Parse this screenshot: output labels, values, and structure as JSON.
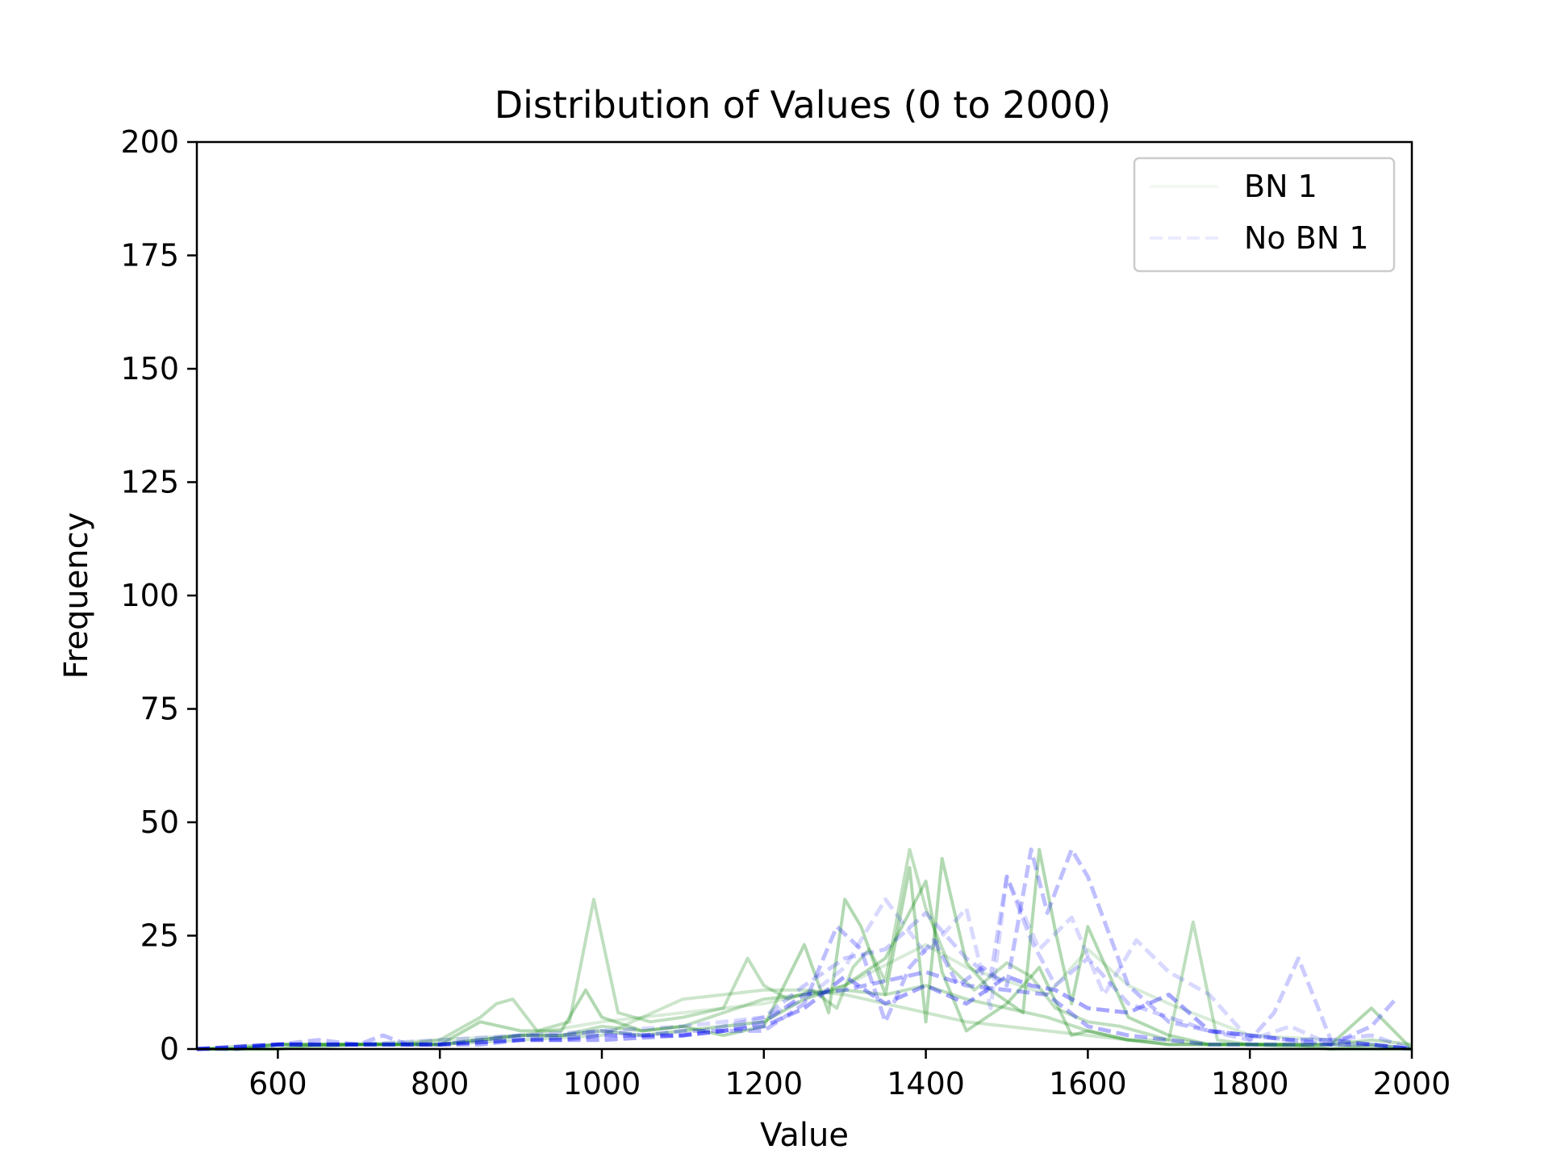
{
  "chart_data": {
    "type": "line",
    "title": "Distribution of Values (0 to 2000)",
    "xlabel": "Value",
    "ylabel": "Frequency",
    "xlim": [
      500,
      2000
    ],
    "ylim": [
      0,
      200
    ],
    "xticks": [
      600,
      800,
      1000,
      1200,
      1400,
      1600,
      1800,
      2000
    ],
    "yticks": [
      0,
      25,
      50,
      75,
      100,
      125,
      150,
      175,
      200
    ],
    "grid": false,
    "legend_position": "top-right",
    "legend": [
      {
        "label": "BN 1",
        "color": "#008000",
        "dash": "solid"
      },
      {
        "label": "No BN 1",
        "color": "#0000ff",
        "dash": "dashed"
      }
    ],
    "series": [
      {
        "name": "BN 1",
        "group": "bn",
        "color": "#008000",
        "opacity": 0.25,
        "x": [
          500,
          550,
          600,
          650,
          700,
          750,
          800,
          850,
          900,
          950,
          1000,
          1050,
          1100,
          1150,
          1200,
          1250,
          1300,
          1350,
          1400,
          1450,
          1500,
          1550,
          1600,
          1650,
          1700,
          1750,
          1800,
          1850,
          1900,
          1950,
          2000
        ],
        "y": [
          0,
          0,
          1,
          1,
          1,
          1,
          1,
          2,
          3,
          3,
          5,
          4,
          5,
          8,
          11,
          12,
          13,
          12,
          14,
          11,
          9,
          7,
          4,
          2,
          1,
          1,
          1,
          1,
          0,
          1,
          0
        ]
      },
      {
        "group": "bn",
        "color": "#008000",
        "opacity": 0.25,
        "x": [
          500,
          550,
          600,
          650,
          700,
          750,
          800,
          830,
          850,
          870,
          890,
          920,
          960,
          990,
          1020,
          1060,
          1100,
          1150,
          1180,
          1200,
          1230,
          1260,
          1290,
          1310,
          1330,
          1350,
          1380,
          1400,
          1430,
          1460,
          1500,
          1530,
          1560,
          1600,
          1640,
          1680,
          1700,
          1730,
          1760,
          1800,
          1850,
          1900,
          1950,
          2000
        ],
        "y": [
          0,
          0,
          0,
          1,
          1,
          1,
          2,
          5,
          7,
          10,
          11,
          4,
          6,
          33,
          8,
          6,
          7,
          9,
          20,
          14,
          11,
          13,
          9,
          18,
          22,
          15,
          44,
          31,
          18,
          13,
          19,
          16,
          9,
          6,
          5,
          3,
          2,
          28,
          2,
          1,
          1,
          1,
          2,
          1
        ]
      },
      {
        "group": "bn",
        "color": "#008000",
        "opacity": 0.3,
        "x": [
          500,
          550,
          600,
          650,
          700,
          750,
          800,
          850,
          900,
          950,
          980,
          1000,
          1050,
          1100,
          1150,
          1200,
          1250,
          1280,
          1300,
          1320,
          1350,
          1380,
          1400,
          1420,
          1450,
          1480,
          1520,
          1540,
          1560,
          1580,
          1600,
          1650,
          1700,
          1750,
          1800,
          1850,
          1900,
          1950,
          2000
        ],
        "y": [
          0,
          0,
          1,
          1,
          1,
          1,
          1,
          6,
          4,
          4,
          13,
          7,
          4,
          5,
          3,
          5,
          23,
          8,
          33,
          27,
          12,
          40,
          6,
          42,
          19,
          13,
          8,
          44,
          26,
          10,
          27,
          7,
          3,
          1,
          1,
          1,
          1,
          9,
          0
        ]
      },
      {
        "group": "bn",
        "color": "#008000",
        "opacity": 0.3,
        "x": [
          500,
          600,
          700,
          800,
          850,
          900,
          950,
          1000,
          1050,
          1100,
          1150,
          1200,
          1250,
          1300,
          1350,
          1400,
          1420,
          1450,
          1500,
          1540,
          1580,
          1600,
          1650,
          1700,
          1800,
          1900,
          2000
        ],
        "y": [
          0,
          0,
          1,
          1,
          2,
          3,
          3,
          4,
          3,
          4,
          5,
          6,
          11,
          14,
          20,
          37,
          17,
          4,
          10,
          18,
          3,
          4,
          2,
          1,
          1,
          0,
          0
        ]
      },
      {
        "group": "bn",
        "color": "#008000",
        "opacity": 0.2,
        "x": [
          500,
          600,
          700,
          800,
          900,
          1000,
          1100,
          1150,
          1200,
          1250,
          1300,
          1350,
          1400,
          1450,
          1500,
          1550,
          1600,
          1650,
          1700,
          1750,
          1800,
          1900,
          2000
        ],
        "y": [
          0,
          1,
          1,
          1,
          2,
          3,
          11,
          12,
          13,
          13,
          12,
          10,
          8,
          6,
          5,
          4,
          3,
          2,
          2,
          1,
          1,
          1,
          0
        ]
      },
      {
        "group": "bn",
        "color": "#008000",
        "opacity": 0.15,
        "x": [
          500,
          600,
          700,
          800,
          900,
          1000,
          1100,
          1200,
          1300,
          1400,
          1450,
          1500,
          1550,
          1600,
          1650,
          1700,
          1800,
          1900,
          2000
        ],
        "y": [
          0,
          1,
          1,
          2,
          3,
          6,
          8,
          10,
          14,
          23,
          18,
          15,
          12,
          22,
          14,
          10,
          3,
          2,
          0
        ]
      },
      {
        "name": "No BN 1",
        "group": "nobn",
        "color": "#0000ff",
        "opacity": 0.3,
        "dash": true,
        "x": [
          500,
          550,
          600,
          650,
          700,
          750,
          800,
          850,
          900,
          950,
          1000,
          1050,
          1100,
          1150,
          1200,
          1250,
          1300,
          1350,
          1400,
          1450,
          1500,
          1550,
          1600,
          1650,
          1700,
          1750,
          1800,
          1850,
          1900,
          1950,
          2000
        ],
        "y": [
          0,
          0,
          1,
          1,
          1,
          1,
          1,
          1,
          2,
          2,
          3,
          3,
          3,
          4,
          6,
          12,
          13,
          15,
          17,
          14,
          13,
          12,
          5,
          3,
          2,
          1,
          1,
          1,
          1,
          1,
          0
        ]
      },
      {
        "group": "nobn",
        "color": "#0000ff",
        "opacity": 0.25,
        "dash": true,
        "x": [
          500,
          600,
          650,
          700,
          730,
          760,
          800,
          850,
          900,
          950,
          1000,
          1050,
          1100,
          1150,
          1200,
          1250,
          1290,
          1320,
          1350,
          1380,
          1410,
          1440,
          1470,
          1500,
          1530,
          1550,
          1580,
          1600,
          1650,
          1700,
          1750,
          1800,
          1850,
          1900,
          1950,
          1980
        ],
        "y": [
          0,
          1,
          2,
          1,
          3,
          1,
          1,
          2,
          3,
          3,
          4,
          3,
          4,
          4,
          4,
          10,
          27,
          22,
          6,
          18,
          24,
          14,
          18,
          14,
          44,
          30,
          44,
          38,
          14,
          6,
          4,
          3,
          2,
          1,
          5,
          11
        ]
      },
      {
        "group": "nobn",
        "color": "#0000ff",
        "opacity": 0.2,
        "dash": true,
        "x": [
          500,
          600,
          700,
          800,
          900,
          1000,
          1100,
          1150,
          1200,
          1250,
          1300,
          1350,
          1400,
          1450,
          1480,
          1500,
          1530,
          1560,
          1600,
          1650,
          1700,
          1750,
          1800,
          1830,
          1860,
          1900,
          1950,
          2000
        ],
        "y": [
          0,
          1,
          1,
          1,
          2,
          3,
          3,
          5,
          7,
          14,
          20,
          22,
          30,
          20,
          16,
          38,
          24,
          14,
          20,
          10,
          7,
          4,
          2,
          8,
          20,
          2,
          3,
          0
        ]
      },
      {
        "group": "nobn",
        "color": "#0000ff",
        "opacity": 0.35,
        "dash": true,
        "x": [
          500,
          600,
          700,
          800,
          900,
          1000,
          1100,
          1150,
          1200,
          1250,
          1300,
          1350,
          1400,
          1450,
          1500,
          1530,
          1560,
          1600,
          1650,
          1700,
          1750,
          1800,
          1850,
          1900,
          1950,
          2000
        ],
        "y": [
          0,
          1,
          1,
          1,
          2,
          2,
          3,
          4,
          5,
          9,
          16,
          10,
          14,
          10,
          16,
          14,
          13,
          9,
          8,
          12,
          4,
          3,
          2,
          2,
          1,
          0
        ]
      },
      {
        "group": "nobn",
        "color": "#0000ff",
        "opacity": 0.15,
        "dash": true,
        "x": [
          500,
          600,
          700,
          800,
          900,
          1000,
          1100,
          1200,
          1250,
          1300,
          1350,
          1400,
          1450,
          1480,
          1500,
          1540,
          1580,
          1620,
          1660,
          1700,
          1750,
          1800,
          1850,
          1900,
          1950,
          2000
        ],
        "y": [
          0,
          1,
          1,
          2,
          3,
          4,
          5,
          7,
          11,
          18,
          33,
          21,
          31,
          9,
          38,
          22,
          29,
          12,
          24,
          17,
          12,
          2,
          5,
          1,
          1,
          0
        ]
      }
    ]
  }
}
